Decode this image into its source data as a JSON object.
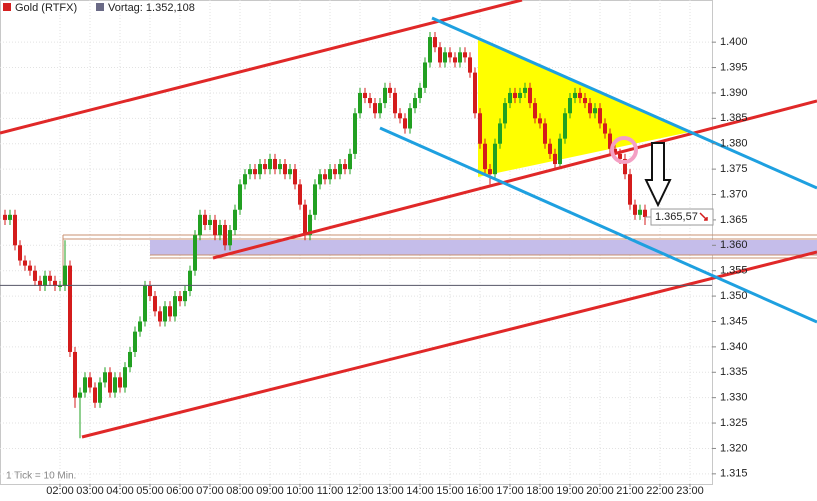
{
  "chart_data": {
    "type": "candlestick",
    "name": "Gold (RTFX)",
    "color": "#d42020",
    "up_color": "#22a022",
    "down_color": "#d41c1c",
    "previous_close": {
      "value": 1.352108,
      "label": "Vortag: 1.352,108",
      "color": "#6a6a86"
    },
    "last_price": {
      "value": 1.36557,
      "label": "1.365,57"
    },
    "note": "1 Tick = 10 Min.",
    "grid": true,
    "xlim": [
      0,
      1424
    ],
    "ylim": [
      1.313,
      1.4083
    ],
    "xticks": [
      {
        "value": 120,
        "label": "02:00"
      },
      {
        "value": 180,
        "label": "03:00"
      },
      {
        "value": 240,
        "label": "04:00"
      },
      {
        "value": 300,
        "label": "05:00"
      },
      {
        "value": 360,
        "label": "06:00"
      },
      {
        "value": 420,
        "label": "07:00"
      },
      {
        "value": 480,
        "label": "08:00"
      },
      {
        "value": 540,
        "label": "09:00"
      },
      {
        "value": 600,
        "label": "10:00"
      },
      {
        "value": 660,
        "label": "11:00"
      },
      {
        "value": 720,
        "label": "12:00"
      },
      {
        "value": 780,
        "label": "13:00"
      },
      {
        "value": 840,
        "label": "14:00"
      },
      {
        "value": 900,
        "label": "15:00"
      },
      {
        "value": 960,
        "label": "16:00"
      },
      {
        "value": 1020,
        "label": "17:00"
      },
      {
        "value": 1080,
        "label": "18:00"
      },
      {
        "value": 1140,
        "label": "19:00"
      },
      {
        "value": 1200,
        "label": "20:00"
      },
      {
        "value": 1260,
        "label": "21:00"
      },
      {
        "value": 1320,
        "label": "22:00"
      },
      {
        "value": 1380,
        "label": "23:00"
      }
    ],
    "yticks": [
      {
        "value": 1.315,
        "label": "1.315"
      },
      {
        "value": 1.32,
        "label": "1.320"
      },
      {
        "value": 1.325,
        "label": "1.325"
      },
      {
        "value": 1.33,
        "label": "1.330"
      },
      {
        "value": 1.335,
        "label": "1.335"
      },
      {
        "value": 1.34,
        "label": "1.340"
      },
      {
        "value": 1.345,
        "label": "1.345"
      },
      {
        "value": 1.35,
        "label": "1.350"
      },
      {
        "value": 1.355,
        "label": "1.355"
      },
      {
        "value": 1.36,
        "label": "1.360"
      },
      {
        "value": 1.365,
        "label": "1.365"
      },
      {
        "value": 1.37,
        "label": "1.370"
      },
      {
        "value": 1.375,
        "label": "1.375"
      },
      {
        "value": 1.38,
        "label": "1.380"
      },
      {
        "value": 1.385,
        "label": "1.385"
      },
      {
        "value": 1.39,
        "label": "1.390"
      },
      {
        "value": 1.395,
        "label": "1.395"
      },
      {
        "value": 1.4,
        "label": "1.400"
      }
    ],
    "x": [
      10,
      20,
      30,
      40,
      50,
      60,
      70,
      80,
      90,
      100,
      110,
      120,
      130,
      140,
      150,
      160,
      170,
      180,
      190,
      200,
      210,
      220,
      230,
      240,
      250,
      260,
      270,
      280,
      290,
      300,
      310,
      320,
      330,
      340,
      350,
      360,
      370,
      380,
      390,
      400,
      410,
      420,
      430,
      440,
      450,
      460,
      470,
      480,
      490,
      500,
      510,
      520,
      530,
      540,
      550,
      560,
      570,
      580,
      590,
      600,
      610,
      620,
      630,
      640,
      650,
      660,
      670,
      680,
      690,
      700,
      710,
      720,
      730,
      740,
      750,
      760,
      770,
      780,
      790,
      800,
      810,
      820,
      830,
      840,
      850,
      860,
      870,
      880,
      890,
      900,
      910,
      920,
      930,
      940,
      950,
      960,
      970,
      980,
      990,
      1000,
      1010,
      1020,
      1030,
      1040,
      1050,
      1060,
      1070,
      1080,
      1090,
      1100,
      1110,
      1120,
      1130,
      1140,
      1150,
      1160,
      1170,
      1180,
      1190,
      1200,
      1210,
      1220,
      1230,
      1240,
      1250,
      1260,
      1270,
      1280,
      1290
    ],
    "ohlc": [
      [
        1.366,
        1.367,
        1.364,
        1.365
      ],
      [
        1.365,
        1.367,
        1.364,
        1.366
      ],
      [
        1.366,
        1.367,
        1.359,
        1.36
      ],
      [
        1.36,
        1.361,
        1.356,
        1.357
      ],
      [
        1.357,
        1.358,
        1.355,
        1.356
      ],
      [
        1.356,
        1.357,
        1.354,
        1.355
      ],
      [
        1.355,
        1.356,
        1.352,
        1.353
      ],
      [
        1.353,
        1.354,
        1.351,
        1.352
      ],
      [
        1.352,
        1.355,
        1.351,
        1.354
      ],
      [
        1.354,
        1.355,
        1.352,
        1.353
      ],
      [
        1.353,
        1.354,
        1.351,
        1.352
      ],
      [
        1.352,
        1.353,
        1.351,
        1.352
      ],
      [
        1.352,
        1.361,
        1.351,
        1.356
      ],
      [
        1.356,
        1.357,
        1.338,
        1.339
      ],
      [
        1.339,
        1.34,
        1.328,
        1.33
      ],
      [
        1.33,
        1.332,
        1.322,
        1.331
      ],
      [
        1.331,
        1.335,
        1.33,
        1.334
      ],
      [
        1.334,
        1.335,
        1.331,
        1.332
      ],
      [
        1.332,
        1.333,
        1.328,
        1.329
      ],
      [
        1.329,
        1.334,
        1.328,
        1.333
      ],
      [
        1.333,
        1.336,
        1.332,
        1.335
      ],
      [
        1.335,
        1.336,
        1.33,
        1.331
      ],
      [
        1.331,
        1.335,
        1.33,
        1.334
      ],
      [
        1.334,
        1.335,
        1.331,
        1.332
      ],
      [
        1.332,
        1.337,
        1.331,
        1.336
      ],
      [
        1.336,
        1.34,
        1.335,
        1.339
      ],
      [
        1.339,
        1.344,
        1.338,
        1.343
      ],
      [
        1.343,
        1.346,
        1.342,
        1.345
      ],
      [
        1.345,
        1.353,
        1.344,
        1.352
      ],
      [
        1.352,
        1.353,
        1.349,
        1.35
      ],
      [
        1.35,
        1.351,
        1.346,
        1.347
      ],
      [
        1.347,
        1.348,
        1.344,
        1.345
      ],
      [
        1.345,
        1.349,
        1.344,
        1.348
      ],
      [
        1.348,
        1.349,
        1.345,
        1.346
      ],
      [
        1.346,
        1.351,
        1.345,
        1.35
      ],
      [
        1.35,
        1.351,
        1.348,
        1.349
      ],
      [
        1.349,
        1.352,
        1.348,
        1.351
      ],
      [
        1.351,
        1.356,
        1.35,
        1.355
      ],
      [
        1.355,
        1.363,
        1.354,
        1.362
      ],
      [
        1.362,
        1.367,
        1.361,
        1.366
      ],
      [
        1.366,
        1.367,
        1.363,
        1.364
      ],
      [
        1.364,
        1.366,
        1.363,
        1.365
      ],
      [
        1.365,
        1.366,
        1.361,
        1.362
      ],
      [
        1.362,
        1.365,
        1.361,
        1.364
      ],
      [
        1.364,
        1.365,
        1.359,
        1.36
      ],
      [
        1.36,
        1.364,
        1.359,
        1.363
      ],
      [
        1.363,
        1.368,
        1.362,
        1.367
      ],
      [
        1.367,
        1.373,
        1.366,
        1.372
      ],
      [
        1.372,
        1.375,
        1.371,
        1.374
      ],
      [
        1.374,
        1.376,
        1.373,
        1.375
      ],
      [
        1.375,
        1.376,
        1.373,
        1.374
      ],
      [
        1.374,
        1.377,
        1.373,
        1.376
      ],
      [
        1.376,
        1.377,
        1.374,
        1.375
      ],
      [
        1.375,
        1.378,
        1.374,
        1.377
      ],
      [
        1.377,
        1.378,
        1.374,
        1.375
      ],
      [
        1.375,
        1.377,
        1.374,
        1.376
      ],
      [
        1.376,
        1.377,
        1.373,
        1.374
      ],
      [
        1.374,
        1.376,
        1.373,
        1.375
      ],
      [
        1.375,
        1.376,
        1.371,
        1.372
      ],
      [
        1.372,
        1.373,
        1.367,
        1.368
      ],
      [
        1.368,
        1.369,
        1.361,
        1.362
      ],
      [
        1.362,
        1.367,
        1.361,
        1.366
      ],
      [
        1.366,
        1.373,
        1.365,
        1.372
      ],
      [
        1.372,
        1.375,
        1.371,
        1.374
      ],
      [
        1.374,
        1.375,
        1.372,
        1.373
      ],
      [
        1.373,
        1.376,
        1.372,
        1.375
      ],
      [
        1.375,
        1.376,
        1.373,
        1.374
      ],
      [
        1.374,
        1.377,
        1.373,
        1.376
      ],
      [
        1.376,
        1.377,
        1.374,
        1.375
      ],
      [
        1.375,
        1.379,
        1.374,
        1.378
      ],
      [
        1.378,
        1.387,
        1.377,
        1.386
      ],
      [
        1.386,
        1.391,
        1.385,
        1.39
      ],
      [
        1.39,
        1.391,
        1.388,
        1.389
      ],
      [
        1.389,
        1.39,
        1.387,
        1.388
      ],
      [
        1.388,
        1.389,
        1.385,
        1.386
      ],
      [
        1.386,
        1.389,
        1.385,
        1.388
      ],
      [
        1.388,
        1.392,
        1.387,
        1.391
      ],
      [
        1.391,
        1.392,
        1.389,
        1.39
      ],
      [
        1.39,
        1.391,
        1.385,
        1.386
      ],
      [
        1.386,
        1.387,
        1.384,
        1.385
      ],
      [
        1.385,
        1.386,
        1.382,
        1.383
      ],
      [
        1.383,
        1.388,
        1.382,
        1.387
      ],
      [
        1.387,
        1.39,
        1.386,
        1.389
      ],
      [
        1.389,
        1.392,
        1.388,
        1.391
      ],
      [
        1.391,
        1.397,
        1.39,
        1.396
      ],
      [
        1.396,
        1.402,
        1.395,
        1.401
      ],
      [
        1.401,
        1.402,
        1.398,
        1.399
      ],
      [
        1.399,
        1.4,
        1.395,
        1.396
      ],
      [
        1.396,
        1.399,
        1.395,
        1.398
      ],
      [
        1.398,
        1.399,
        1.396,
        1.397
      ],
      [
        1.397,
        1.398,
        1.395,
        1.396
      ],
      [
        1.396,
        1.399,
        1.395,
        1.398
      ],
      [
        1.398,
        1.399,
        1.396,
        1.397
      ],
      [
        1.397,
        1.398,
        1.393,
        1.394
      ],
      [
        1.394,
        1.395,
        1.385,
        1.386
      ],
      [
        1.386,
        1.387,
        1.379,
        1.38
      ],
      [
        1.38,
        1.381,
        1.374,
        1.375
      ],
      [
        1.375,
        1.376,
        1.372,
        1.374
      ],
      [
        1.374,
        1.381,
        1.373,
        1.38
      ],
      [
        1.38,
        1.385,
        1.379,
        1.384
      ],
      [
        1.384,
        1.389,
        1.383,
        1.388
      ],
      [
        1.388,
        1.391,
        1.387,
        1.39
      ],
      [
        1.39,
        1.391,
        1.388,
        1.389
      ],
      [
        1.389,
        1.391,
        1.388,
        1.39
      ],
      [
        1.39,
        1.392,
        1.389,
        1.391
      ],
      [
        1.391,
        1.392,
        1.387,
        1.388
      ],
      [
        1.388,
        1.389,
        1.384,
        1.385
      ],
      [
        1.385,
        1.386,
        1.383,
        1.384
      ],
      [
        1.384,
        1.385,
        1.379,
        1.38
      ],
      [
        1.38,
        1.381,
        1.377,
        1.378
      ],
      [
        1.378,
        1.379,
        1.375,
        1.376
      ],
      [
        1.376,
        1.382,
        1.375,
        1.381
      ],
      [
        1.381,
        1.387,
        1.38,
        1.386
      ],
      [
        1.386,
        1.39,
        1.385,
        1.389
      ],
      [
        1.389,
        1.391,
        1.388,
        1.39
      ],
      [
        1.39,
        1.391,
        1.388,
        1.389
      ],
      [
        1.389,
        1.39,
        1.387,
        1.388
      ],
      [
        1.388,
        1.389,
        1.385,
        1.386
      ],
      [
        1.386,
        1.388,
        1.385,
        1.387
      ],
      [
        1.387,
        1.388,
        1.383,
        1.384
      ],
      [
        1.384,
        1.385,
        1.381,
        1.382
      ],
      [
        1.382,
        1.383,
        1.378,
        1.379
      ],
      [
        1.379,
        1.38,
        1.377,
        1.378
      ],
      [
        1.378,
        1.379,
        1.376,
        1.377
      ],
      [
        1.377,
        1.378,
        1.373,
        1.374
      ],
      [
        1.374,
        1.375,
        1.367,
        1.368
      ],
      [
        1.368,
        1.369,
        1.365,
        1.366
      ],
      [
        1.366,
        1.368,
        1.365,
        1.367
      ],
      [
        1.367,
        1.368,
        1.364,
        1.36557
      ]
    ]
  }
}
